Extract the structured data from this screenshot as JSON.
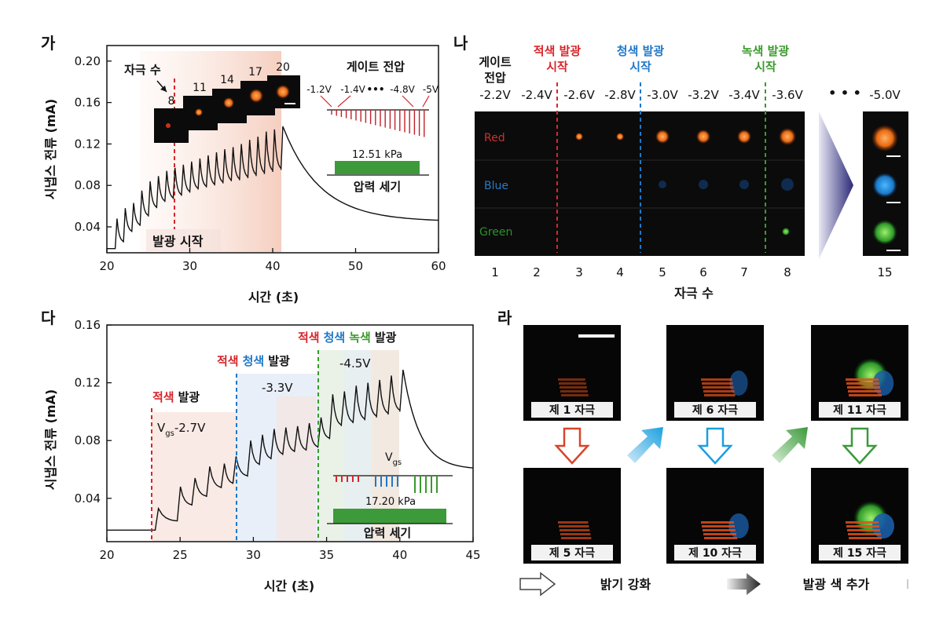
{
  "panels": {
    "a": {
      "label": "가"
    },
    "b": {
      "label": "나"
    },
    "c": {
      "label": "다"
    },
    "d": {
      "label": "라"
    }
  },
  "panel_a": {
    "electrode_count_label": "자극 수",
    "electrode_counts": [
      "8",
      "11",
      "14",
      "17",
      "20"
    ],
    "gate_title": "게이트 전압",
    "gate_values": [
      "-1.2V",
      "-1.4V",
      "•••",
      "-4.8V",
      "-5V"
    ],
    "pressure_value": "12.51 kPa",
    "pressure_label": "압력 세기",
    "emission_start": "발광 시작"
  },
  "panel_b": {
    "gate_header": "게이트\n전압",
    "voltages": [
      "-2.2V",
      "-2.4V",
      "-2.6V",
      "-2.8V",
      "-3.0V",
      "-3.2V",
      "-3.4V",
      "-3.6V",
      "-5.0V"
    ],
    "dots": "• • •",
    "red_start": "적색 발광\n시작",
    "blue_start": "청색 발광\n시작",
    "green_start": "녹색 발광\n시작",
    "rows": [
      "Red",
      "Blue",
      "Green"
    ],
    "x_ticks": [
      "1",
      "2",
      "3",
      "4",
      "5",
      "6",
      "7",
      "8",
      "15"
    ],
    "xlabel": "자극 수",
    "colors": {
      "red": "#d7262b",
      "blue": "#1f78c8",
      "green": "#3a9a2c"
    }
  },
  "panel_c": {
    "label_red": "적색",
    "label_blue": "청색",
    "label_green": "녹색",
    "label_emit": "발광",
    "vgs_prefix": "V",
    "vgs_sub": "gs",
    "v1": "-2.7V",
    "v2": "-3.3V",
    "v3": "-4.5V",
    "pressure_value": "17.20 kPa",
    "pressure_label": "압력 세기"
  },
  "panel_d": {
    "tiles": [
      "제 1 자극",
      "제 6 자극",
      "제 11 자극",
      "제 5 자극",
      "제 10 자극",
      "제 15 자극"
    ],
    "legend_brightness": "밝기 강화",
    "legend_color": "발광 색 추가"
  },
  "chart_data": [
    {
      "type": "line",
      "panel": "가",
      "title": "",
      "xlabel": "시간 (초)",
      "ylabel": "시냅스 전류 (mA)",
      "xlim": [
        20,
        60
      ],
      "ylim": [
        0.015,
        0.215
      ],
      "x_ticks": [
        20,
        30,
        40,
        50,
        60
      ],
      "y_ticks": [
        0.04,
        0.08,
        0.12,
        0.16,
        0.2
      ],
      "pulse_times": [
        21.0,
        22.0,
        23.0,
        24.0,
        25.0,
        26.0,
        27.0,
        28.0,
        29.0,
        30.0,
        31.0,
        32.0,
        33.0,
        34.0,
        35.0,
        36.0,
        37.0,
        38.0,
        39.0,
        40.0,
        41.0
      ],
      "peaks": [
        0.048,
        0.058,
        0.063,
        0.075,
        0.084,
        0.089,
        0.094,
        0.097,
        0.1,
        0.103,
        0.106,
        0.109,
        0.112,
        0.115,
        0.117,
        0.12,
        0.124,
        0.127,
        0.132,
        0.134,
        0.137
      ],
      "troughs": [
        0.025,
        0.035,
        0.041,
        0.05,
        0.058,
        0.064,
        0.067,
        0.07,
        0.073,
        0.076,
        0.078,
        0.08,
        0.082,
        0.084,
        0.085,
        0.087,
        0.089,
        0.091,
        0.093,
        0.095
      ],
      "baseline": 0.019,
      "decay_end": [
        60,
        0.045
      ]
    },
    {
      "type": "line",
      "panel": "다",
      "title": "",
      "xlabel": "시간 (초)",
      "ylabel": "시냅스 전류 (mA)",
      "xlim": [
        20,
        45
      ],
      "ylim": [
        0.01,
        0.16
      ],
      "x_ticks": [
        20,
        25,
        30,
        35,
        40,
        45
      ],
      "y_ticks": [
        0.04,
        0.08,
        0.12,
        0.16
      ],
      "pulse_times": [
        23.3,
        24.8,
        25.8,
        26.8,
        27.8,
        28.6,
        29.6,
        30.4,
        31.2,
        32.0,
        32.8,
        33.6,
        34.4,
        35.2,
        36.0,
        36.8,
        37.6,
        38.4,
        39.2,
        40.0
      ],
      "peaks": [
        0.033,
        0.048,
        0.054,
        0.062,
        0.064,
        0.069,
        0.08,
        0.084,
        0.088,
        0.089,
        0.09,
        0.092,
        0.096,
        0.112,
        0.114,
        0.118,
        0.12,
        0.122,
        0.125,
        0.129
      ],
      "troughs": [
        0.024,
        0.035,
        0.041,
        0.047,
        0.05,
        0.055,
        0.063,
        0.067,
        0.07,
        0.072,
        0.073,
        0.075,
        0.081,
        0.09,
        0.092,
        0.094,
        0.096,
        0.098,
        0.1
      ],
      "baseline": 0.018,
      "decay_end": [
        45,
        0.06
      ]
    }
  ]
}
